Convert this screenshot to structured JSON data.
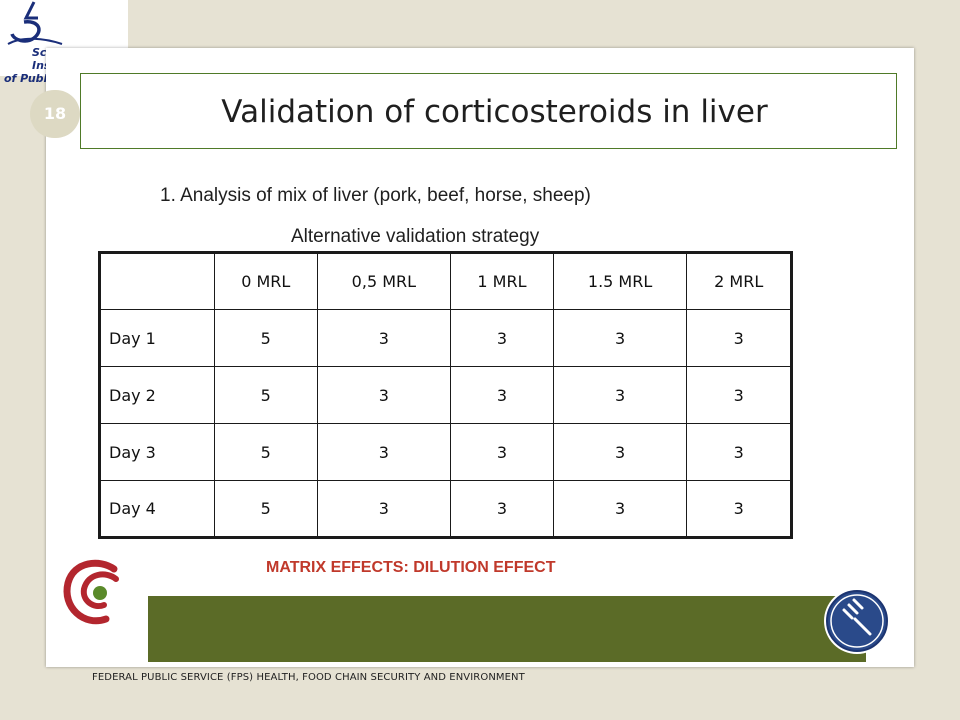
{
  "logo": {
    "icon": "scientific-institute-logo-icon",
    "line1": "Scientific Institute",
    "line2": "of Public Health"
  },
  "slide": {
    "number": "18",
    "title": "Validation of corticosteroids in liver",
    "subtitle": "1. Analysis of mix of liver (pork, beef, horse, sheep)",
    "strategy": "Alternative validation strategy",
    "matrix_note": "MATRIX EFFECTS: DILUTION EFFECT"
  },
  "table": {
    "headers": [
      "",
      "0 MRL",
      "0,5 MRL",
      "1 MRL",
      "1.5 MRL",
      "2 MRL"
    ],
    "rows": [
      {
        "label": "Day 1",
        "values": [
          "5",
          "3",
          "3",
          "3",
          "3"
        ]
      },
      {
        "label": "Day 2",
        "values": [
          "5",
          "3",
          "3",
          "3",
          "3"
        ]
      },
      {
        "label": "Day 3",
        "values": [
          "5",
          "3",
          "3",
          "3",
          "3"
        ]
      },
      {
        "label": "Day 4",
        "values": [
          "5",
          "3",
          "3",
          "3",
          "3"
        ]
      }
    ]
  },
  "footer": {
    "text": "FEDERAL PUBLIC SERVICE (FPS) HEALTH, FOOD CHAIN SECURITY AND ENVIRONMENT"
  },
  "colors": {
    "background": "#e6e2d3",
    "title_border": "#4f7a28",
    "green_band": "#5b6b27",
    "matrix_text": "#c0392b",
    "logo_navy": "#1a2e7a",
    "swirl_red": "#b3262e",
    "swirl_green": "#5a8a2a",
    "fork_circle": "#2a4a8a"
  },
  "icons": {
    "swirl": "health-swirl-logo-icon",
    "fork": "fork-food-chain-icon"
  }
}
